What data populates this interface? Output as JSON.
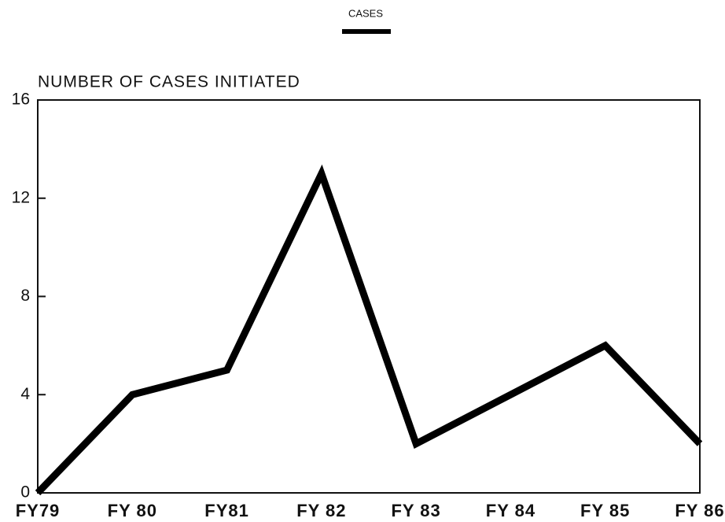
{
  "chart_data": {
    "type": "line",
    "y_label": "NUMBER OF CASES INITIATED",
    "categories": [
      "FY79",
      "FY 80",
      "FY81",
      "FY 82",
      "FY 83",
      "FY 84",
      "FY 85",
      "FY 86"
    ],
    "series": [
      {
        "name": "CASES",
        "color": "#000000",
        "values": [
          0,
          4,
          5,
          13,
          2,
          4,
          6,
          2
        ]
      }
    ],
    "ylim": [
      0,
      16
    ],
    "yticks": [
      0,
      4,
      8,
      12,
      16
    ],
    "grid": false,
    "legend": "top"
  }
}
